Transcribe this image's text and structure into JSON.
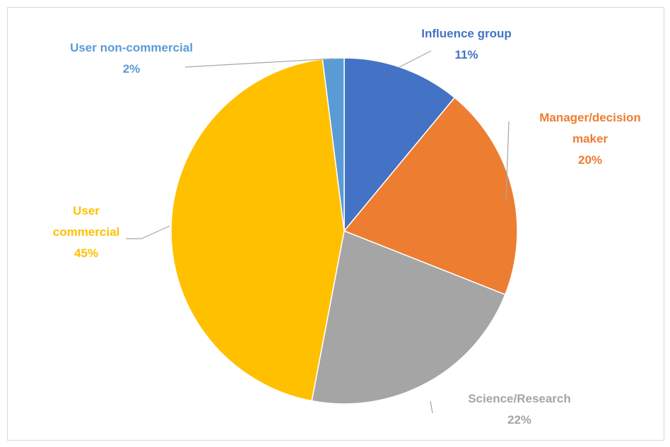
{
  "chart_data": {
    "type": "pie",
    "categories": [
      "Influence group",
      "Manager/decision maker",
      "Science/Research",
      "User commercial",
      "User non-commercial"
    ],
    "values": [
      11,
      20,
      22,
      45,
      2
    ],
    "value_labels": [
      "11%",
      "20%",
      "22%",
      "45%",
      "2%"
    ],
    "colors": [
      "#4472c4",
      "#ed7d31",
      "#a5a5a5",
      "#ffc000",
      "#5b9bd5"
    ]
  }
}
